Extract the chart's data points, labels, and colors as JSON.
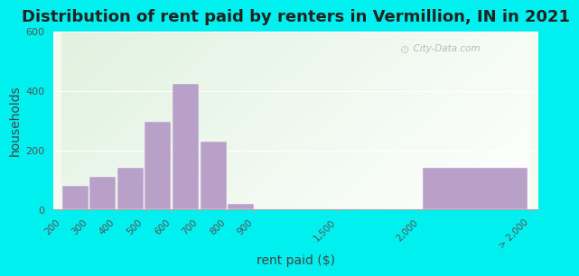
{
  "title": "Distribution of rent paid by renters in Vermillion, IN in 2021",
  "xlabel": "rent paid ($)",
  "ylabel": "households",
  "tick_labels": [
    "200",
    "300",
    "400",
    "500",
    "600",
    "700",
    "800",
    "900",
    "1,500",
    "2,000",
    "> 2,000"
  ],
  "bar_values": [
    80,
    110,
    140,
    295,
    425,
    230,
    20,
    2,
    0,
    140
  ],
  "bar_color": "#b8a0c8",
  "bg_outer": "#00EFEF",
  "ylim": [
    0,
    600
  ],
  "yticks": [
    0,
    200,
    400,
    600
  ],
  "watermark": "City-Data.com",
  "title_fontsize": 13,
  "axis_label_fontsize": 10
}
